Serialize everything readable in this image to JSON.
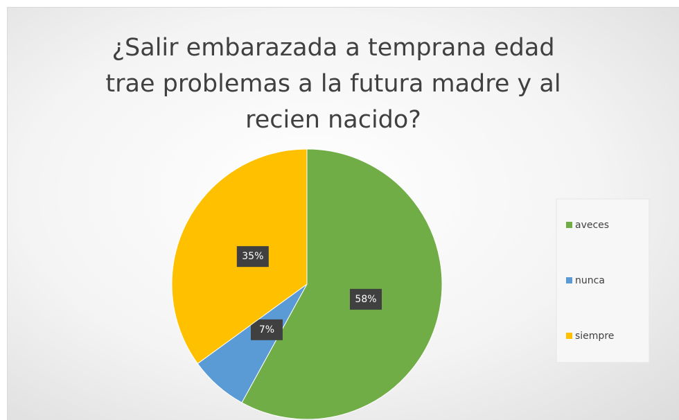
{
  "chart_data": {
    "type": "pie",
    "title": "¿Salir embarazada a temprana edad trae problemas a la futura madre y al recien nacido?",
    "categories": [
      "aveces",
      "nunca",
      "siempre"
    ],
    "values": [
      58,
      7,
      35
    ],
    "value_labels": [
      "58%",
      "7%",
      "35%"
    ],
    "colors": [
      "#70ad47",
      "#5b9bd5",
      "#ffc000"
    ],
    "legend": "right"
  }
}
